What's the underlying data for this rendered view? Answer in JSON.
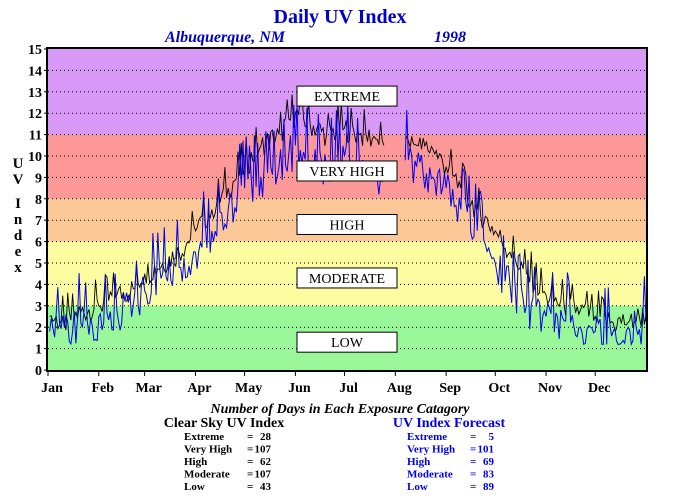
{
  "title": "Daily UV Index",
  "location": "Albuquerque, NM",
  "year": "1998",
  "ylabel": "UV Index",
  "colors": {
    "extreme": "#d899f7",
    "very_high": "#fc9898",
    "high": "#fdc897",
    "moderate": "#fcfca0",
    "low": "#99f799",
    "clear_sky": "#000000",
    "forecast": "#0000ee",
    "title": "#0000cc"
  },
  "bands": [
    {
      "label": "EXTREME",
      "from": 11,
      "to": 15,
      "label_at": 12.8
    },
    {
      "label": "VERY HIGH",
      "from": 8,
      "to": 11,
      "label_at": 9.3
    },
    {
      "label": "HIGH",
      "from": 6,
      "to": 8,
      "label_at": 6.8
    },
    {
      "label": "MODERATE",
      "from": 3,
      "to": 6,
      "label_at": 4.3
    },
    {
      "label": "LOW",
      "from": 0,
      "to": 3,
      "label_at": 1.3
    }
  ],
  "summary": {
    "heading": "Number of Days in Each Exposure Catagory",
    "clear_sky": {
      "title": "Clear Sky UV Index",
      "rows": [
        {
          "label": "Extreme",
          "value": "28"
        },
        {
          "label": "Very High",
          "value": "107"
        },
        {
          "label": "High",
          "value": "62"
        },
        {
          "label": "Moderate",
          "value": "107"
        },
        {
          "label": "Low",
          "value": "43"
        }
      ]
    },
    "forecast": {
      "title": "UV Index Forecast",
      "rows": [
        {
          "label": "Extreme",
          "value": "5"
        },
        {
          "label": "Very High",
          "value": "101"
        },
        {
          "label": "High",
          "value": "69"
        },
        {
          "label": "Moderate",
          "value": "83"
        },
        {
          "label": "Low",
          "value": "89"
        }
      ]
    }
  },
  "chart_data": {
    "type": "line",
    "title": "Daily UV Index",
    "xlabel": "",
    "ylabel": "UV Index",
    "ylim": [
      0,
      15
    ],
    "xlim": [
      0,
      365
    ],
    "yticks": [
      "0",
      "1",
      "2",
      "3",
      "4",
      "5",
      "6",
      "7",
      "8",
      "9",
      "10",
      "11",
      "12",
      "13",
      "14",
      "15"
    ],
    "months": [
      "Jan",
      "Feb",
      "Mar",
      "Apr",
      "May",
      "Jun",
      "Jul",
      "Aug",
      "Sep",
      "Oct",
      "Nov",
      "Dec"
    ],
    "grid": true,
    "series": [
      {
        "name": "Clear Sky UV Index",
        "color": "#000000",
        "points": [
          [
            1,
            2.5
          ],
          [
            10,
            2.2
          ],
          [
            20,
            2.7
          ],
          [
            31,
            3.0
          ],
          [
            42,
            3.5
          ],
          [
            52,
            3.8
          ],
          [
            59,
            4.5
          ],
          [
            70,
            5.0
          ],
          [
            80,
            5.5
          ],
          [
            90,
            6.5
          ],
          [
            100,
            7.5
          ],
          [
            110,
            8.5
          ],
          [
            120,
            9.5
          ],
          [
            130,
            10.5
          ],
          [
            141,
            11.0
          ],
          [
            151,
            12.0
          ],
          [
            160,
            11.5
          ],
          [
            170,
            11.0
          ],
          [
            181,
            11.3
          ],
          [
            190,
            11.0
          ],
          [
            200,
            10.8
          ],
          [
            205,
            10.5
          ],
          [
            212,
            null
          ],
          [
            218,
            10.8
          ],
          [
            225,
            10.5
          ],
          [
            235,
            10.3
          ],
          [
            243,
            9.5
          ],
          [
            252,
            8.5
          ],
          [
            262,
            7.5
          ],
          [
            273,
            6.5
          ],
          [
            282,
            5.5
          ],
          [
            292,
            4.5
          ],
          [
            304,
            3.5
          ],
          [
            315,
            3.0
          ],
          [
            325,
            2.8
          ],
          [
            334,
            2.5
          ],
          [
            345,
            2.2
          ],
          [
            355,
            2.3
          ],
          [
            365,
            2.6
          ]
        ]
      },
      {
        "name": "UV Index Forecast",
        "color": "#0000ee",
        "points": [
          [
            1,
            1.8
          ],
          [
            10,
            2.0
          ],
          [
            20,
            2.2
          ],
          [
            31,
            2.5
          ],
          [
            42,
            2.8
          ],
          [
            52,
            3.0
          ],
          [
            59,
            3.7
          ],
          [
            70,
            4.5
          ],
          [
            80,
            4.8
          ],
          [
            90,
            5.5
          ],
          [
            100,
            6.5
          ],
          [
            110,
            7.5
          ],
          [
            120,
            8.5
          ],
          [
            130,
            9.0
          ],
          [
            141,
            9.5
          ],
          [
            151,
            10.5
          ],
          [
            160,
            9.8
          ],
          [
            170,
            9.5
          ],
          [
            181,
            10.0
          ],
          [
            190,
            9.8
          ],
          [
            200,
            9.5
          ],
          [
            205,
            9.0
          ],
          [
            212,
            null
          ],
          [
            218,
            9.8
          ],
          [
            225,
            9.5
          ],
          [
            235,
            9.0
          ],
          [
            243,
            8.5
          ],
          [
            252,
            7.5
          ],
          [
            262,
            6.5
          ],
          [
            273,
            5.0
          ],
          [
            282,
            4.0
          ],
          [
            292,
            3.0
          ],
          [
            304,
            2.5
          ],
          [
            315,
            2.3
          ],
          [
            325,
            2.0
          ],
          [
            334,
            1.8
          ],
          [
            345,
            1.8
          ],
          [
            355,
            1.9
          ],
          [
            365,
            2.3
          ]
        ]
      }
    ]
  }
}
